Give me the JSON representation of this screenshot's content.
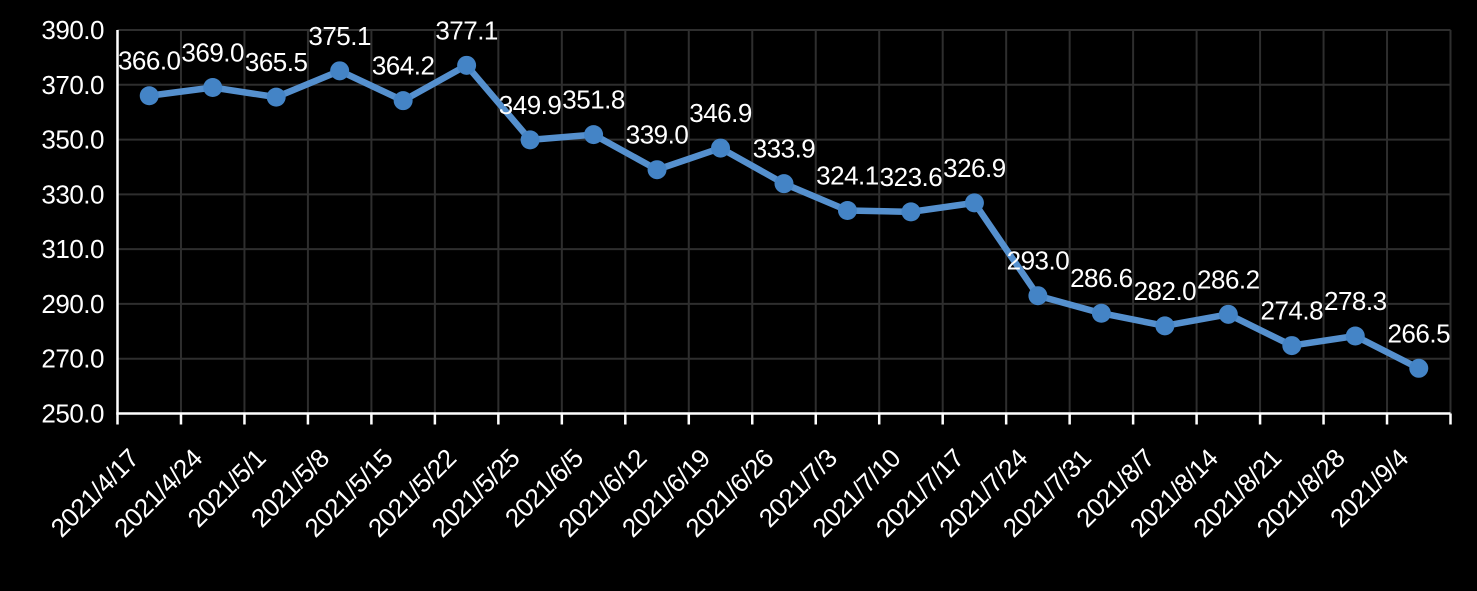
{
  "chart_data": {
    "type": "line",
    "title": "",
    "xlabel": "",
    "ylabel": "",
    "categories": [
      "2021/4/17",
      "2021/4/24",
      "2021/5/1",
      "2021/5/8",
      "2021/5/15",
      "2021/5/22",
      "2021/5/25",
      "2021/6/5",
      "2021/6/12",
      "2021/6/19",
      "2021/6/26",
      "2021/7/3",
      "2021/7/10",
      "2021/7/17",
      "2021/7/24",
      "2021/7/31",
      "2021/8/7",
      "2021/8/14",
      "2021/8/21",
      "2021/8/28",
      "2021/9/4"
    ],
    "values": [
      366.0,
      369.0,
      365.5,
      375.1,
      364.2,
      377.1,
      349.9,
      351.8,
      339.0,
      346.9,
      333.9,
      324.1,
      323.6,
      326.9,
      293.0,
      286.6,
      282.0,
      286.2,
      274.8,
      278.3,
      266.5
    ],
    "data_labels": [
      "366.0",
      "369.0",
      "365.5",
      "375.1",
      "364.2",
      "377.1",
      "349.9",
      "351.8",
      "339.0",
      "346.9",
      "333.9",
      "324.1",
      "323.6",
      "326.9",
      "293.0",
      "286.6",
      "282.0",
      "286.2",
      "274.8",
      "278.3",
      "266.5"
    ],
    "ylim": [
      250,
      390
    ],
    "ytick_step": 20,
    "y_tick_labels": [
      "390.0",
      "370.0",
      "350.0",
      "330.0",
      "310.0",
      "290.0",
      "270.0",
      "250.0"
    ],
    "grid": true,
    "legend_position": "none",
    "x_label_rotation_deg": 45,
    "colors": {
      "background": "#000000",
      "line": "#5590CE",
      "marker": "#4484C6",
      "grid": "#2e2e2e",
      "axis": "#ffffff",
      "text": "#ffffff"
    }
  }
}
